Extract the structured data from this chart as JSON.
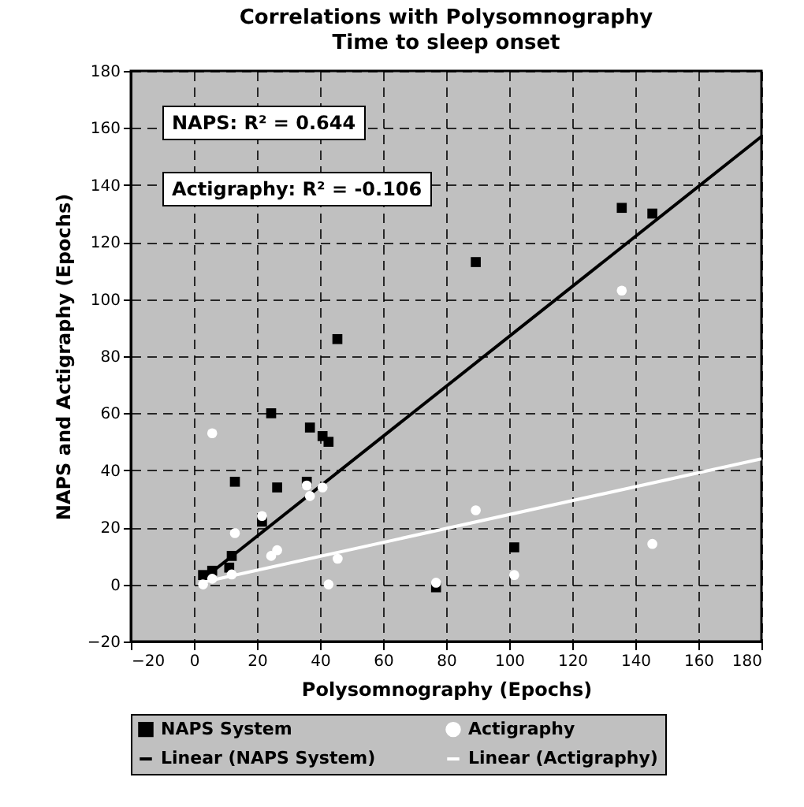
{
  "chart_data": {
    "type": "scatter",
    "title": "Correlations with Polysomnography",
    "subtitle": "Time to sleep onset",
    "xlabel": "Polysomnography (Epochs)",
    "ylabel": "NAPS and Actigraphy (Epochs)",
    "xlim": [
      -20,
      180
    ],
    "ylim": [
      -20,
      180
    ],
    "xticks": [
      -20,
      0,
      20,
      40,
      60,
      80,
      100,
      120,
      140,
      160,
      180
    ],
    "yticks": [
      -20,
      0,
      20,
      40,
      60,
      80,
      100,
      120,
      140,
      160,
      180
    ],
    "grid": true,
    "legend": "bottom",
    "annotations": [
      "NAPS: R² = 0.644",
      "Actigraphy: R² = -0.106"
    ],
    "series": [
      {
        "name": "NAPS System",
        "type": "scatter",
        "marker": "square",
        "color": "#000000",
        "x": [
          2.9,
          5.8,
          11.2,
          12,
          13,
          21.6,
          24.5,
          26.4,
          35.8,
          36.8,
          40.8,
          42.7,
          45.5,
          76.8,
          89.4,
          101.6,
          135.7,
          145.4
        ],
        "values": [
          3.3,
          4.8,
          5.9,
          10,
          36,
          22,
          60,
          34,
          36,
          55,
          52,
          50,
          86,
          -1,
          113,
          13,
          132,
          130
        ]
      },
      {
        "name": "Actigraphy",
        "type": "scatter",
        "marker": "circle",
        "color": "#ffffff",
        "x": [
          2.9,
          5.8,
          5.8,
          12,
          13,
          21.6,
          24.5,
          26.4,
          35.8,
          36.8,
          40.8,
          42.7,
          45.6,
          76.8,
          89.4,
          101.6,
          135.7,
          145.4
        ],
        "values": [
          0,
          53,
          2,
          3.5,
          18,
          24,
          10,
          12,
          34.7,
          31,
          34,
          0,
          9,
          0.6,
          26,
          3.3,
          103,
          14.2
        ]
      },
      {
        "name": "Linear (NAPS System)",
        "type": "line",
        "color": "#000000",
        "x": [
          2.9,
          180
        ],
        "values": [
          1.9,
          157
        ]
      },
      {
        "name": "Linear (Actigraphy)",
        "type": "line",
        "color": "#ffffff",
        "x": [
          3.7,
          180
        ],
        "values": [
          1,
          44
        ]
      }
    ]
  }
}
